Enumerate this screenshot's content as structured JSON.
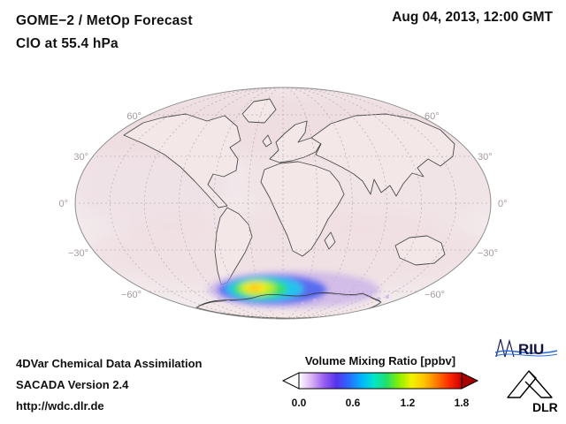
{
  "header": {
    "title_line1": "GOME−2 / MetOp Forecast",
    "title_line2": "ClO at 55.4 hPa",
    "datetime": "Aug 04, 2013, 12:00 GMT"
  },
  "map": {
    "lat_left": [
      "60°",
      "30°",
      "0°",
      "−30°",
      "−60°"
    ],
    "lat_right": [
      "60°",
      "30°",
      "0°",
      "−30°",
      "−60°"
    ]
  },
  "footer": {
    "line1": "4DVar Chemical Data Assimilation",
    "line2": "SACADA Version 2.4",
    "line3": "http://wdc.dlr.de"
  },
  "colorbar": {
    "title": "Volume Mixing Ratio [ppbv]",
    "ticks": [
      "0.0",
      "0.6",
      "1.2",
      "1.8"
    ],
    "colors": [
      "#ffffff",
      "#d9b3f5",
      "#9a5ef0",
      "#5533ee",
      "#2a6bff",
      "#00b4ff",
      "#00e6c8",
      "#21e06b",
      "#8bef00",
      "#f2f200",
      "#ffc400",
      "#ff7a00",
      "#ff2a00",
      "#cc0000"
    ],
    "arrow_left": "#ffffff",
    "arrow_right": "#a80000"
  },
  "logos": {
    "riu_text": "RIU",
    "dlr_text": "DLR"
  },
  "chart_data": {
    "type": "heatmap",
    "title": "GOME−2 / MetOp Forecast — ClO at 55.4 hPa",
    "timestamp": "Aug 04, 2013, 12:00 GMT",
    "projection": "Mollweide world map, centered on 0° longitude",
    "variable": "ClO volume mixing ratio",
    "units": "ppbv",
    "colorbar_ticks": [
      0.0,
      0.6,
      1.2,
      1.8
    ],
    "colorbar_range": [
      0.0,
      1.8
    ],
    "lat_gridlines_deg": [
      60,
      30,
      0,
      -30,
      -60
    ],
    "lon_gridline_spacing_deg": 30,
    "features": [
      {
        "name": "antarctic-clo-plume",
        "description": "Enhanced ClO plume over the Antarctic polar vortex, concentric shading from purple/blue edge to yellow-green core",
        "lat_range": [
          -80,
          -55
        ],
        "lon_range": [
          -60,
          60
        ],
        "peak_ppbv": 1.4,
        "peak_location": {
          "lat": -72,
          "lon": -15
        }
      },
      {
        "name": "background",
        "description": "Near-zero ClO elsewhere; faint pale-pink noise over mid and high latitudes",
        "value_ppbv": 0.0
      }
    ]
  }
}
